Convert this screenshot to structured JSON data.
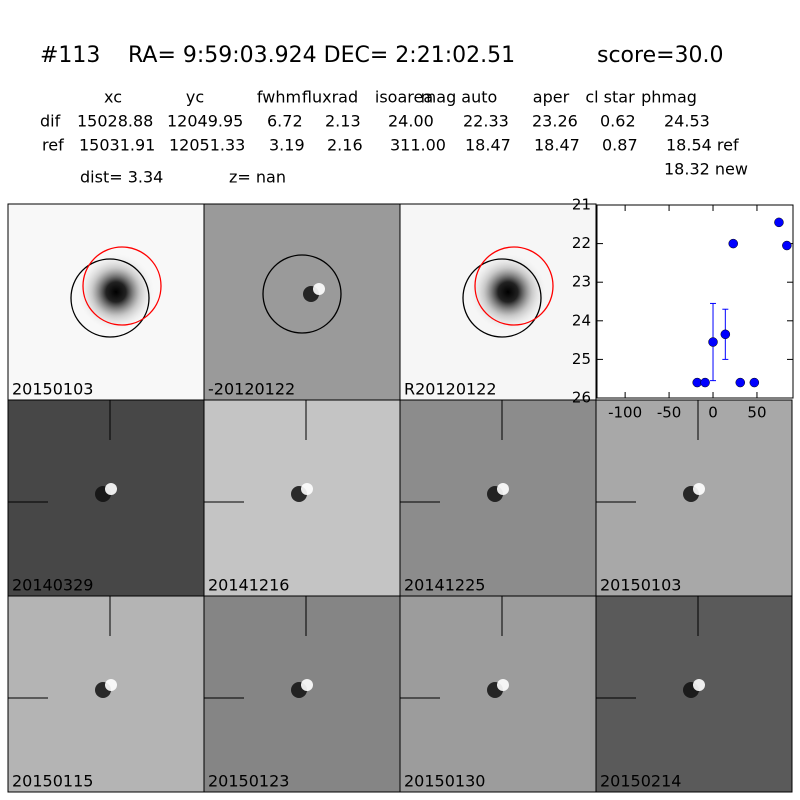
{
  "header": {
    "id": "#113",
    "coords": "RA= 9:59:03.924 DEC= 2:21:02.51",
    "score": "score=30.0"
  },
  "table": {
    "columns": [
      "xc",
      "yc",
      "fwhm",
      "fluxrad",
      "isoarea",
      "mag auto",
      "aper",
      "cl star",
      "phmag"
    ],
    "rows": [
      [
        "dif",
        "15028.88",
        "12049.95",
        "6.72",
        "2.13",
        "24.00",
        "22.33",
        "23.26",
        "0.62",
        "24.53"
      ],
      [
        "ref",
        "15031.91",
        "12051.33",
        "3.19",
        "2.16",
        "311.00",
        "18.47",
        "18.47",
        "0.87",
        "18.54 ref"
      ]
    ],
    "extra": "18.32 new",
    "dist": "dist=  3.34",
    "z": "z=   nan"
  },
  "panels": [
    "20150103",
    "-20120122",
    "R20120122",
    "20140329",
    "20141216",
    "20141225",
    "20150103",
    "20150115",
    "20150123",
    "20150130",
    "20150214"
  ],
  "highlight_panel": 6,
  "highlight_color": "#ff0000",
  "chart_data": {
    "type": "scatter",
    "color": "#0000ff",
    "x": [
      -18,
      -9,
      0,
      14,
      23,
      31,
      47,
      75,
      84
    ],
    "values": [
      25.6,
      25.6,
      24.55,
      24.35,
      22.0,
      25.6,
      25.6,
      21.45,
      22.05
    ],
    "errors": [
      null,
      null,
      1.0,
      0.65,
      null,
      null,
      null,
      null,
      null
    ],
    "xlim": [
      -132,
      91
    ],
    "ylim": [
      26,
      21
    ],
    "xticks": [
      -100,
      -50,
      0,
      50
    ],
    "yticks": [
      21,
      22,
      23,
      24,
      25,
      26
    ]
  }
}
